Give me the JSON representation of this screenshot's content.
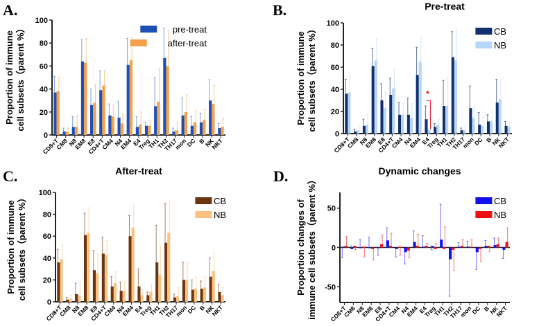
{
  "chart_data": [
    {
      "panel_label": "A.",
      "type": "bar",
      "title": "",
      "ylabel": [
        "Proportion of immune",
        "cell subsets（parent %）"
      ],
      "ylim": [
        0,
        100
      ],
      "yticks": [
        0,
        20,
        40,
        60,
        80,
        100
      ],
      "categories": [
        "CD8+T",
        "CM8",
        "N8",
        "EM8",
        "E8",
        "CD4+T",
        "CM4",
        "N4",
        "EM4",
        "E4",
        "Treg",
        "TH1",
        "TH2",
        "TH17",
        "mon",
        "DC",
        "B",
        "NK",
        "NKT"
      ],
      "legend": "top-right",
      "series": [
        {
          "name": "pre-treat",
          "color": "#1f4fb5",
          "errcolor": "#7ea3e0",
          "values": [
            37,
            3,
            7,
            64,
            26,
            39,
            17,
            15,
            61,
            7,
            8,
            25,
            67,
            3,
            17,
            8,
            11,
            30,
            6
          ],
          "err_end": [
            51,
            6,
            16,
            83,
            40,
            56,
            27,
            29,
            84,
            16,
            11,
            50,
            93,
            6,
            32,
            16,
            19,
            48,
            10
          ]
        },
        {
          "name": "after-treat",
          "color": "#f5a04a",
          "errcolor": "#f9c994",
          "values": [
            38,
            3,
            7,
            63,
            28,
            43,
            16,
            10,
            65,
            9,
            8,
            29,
            60,
            4,
            20,
            11,
            13,
            27,
            7
          ],
          "err_end": [
            50,
            6,
            17,
            84,
            44,
            56,
            26,
            18,
            85,
            20,
            13,
            58,
            91,
            11,
            35,
            21,
            22,
            43,
            14
          ]
        }
      ]
    },
    {
      "panel_label": "B.",
      "type": "bar",
      "title": "Pre-treat",
      "ylabel": [
        "Proportion of immune",
        "cell subsets（parent %）"
      ],
      "ylim": [
        0,
        100
      ],
      "yticks": [
        0,
        20,
        40,
        60,
        80,
        100
      ],
      "categories": [
        "CD8+T",
        "CM8",
        "N8",
        "EM8",
        "E8",
        "CD4+T",
        "CM4",
        "N4",
        "EM4",
        "E4",
        "Treg",
        "TH1",
        "TH2",
        "TH17",
        "mon",
        "DC",
        "B",
        "NK",
        "NKT"
      ],
      "legend": "top-right",
      "annotation": {
        "text": "*",
        "between": "E4 CB vs NB",
        "color": "#e02020"
      },
      "series": [
        {
          "name": "CB",
          "color": "#12306e",
          "errcolor": "#5a6f99",
          "values": [
            36,
            2,
            7,
            61,
            30,
            35,
            17,
            17,
            53,
            13,
            6,
            25,
            69,
            3,
            23,
            8,
            11,
            28,
            7
          ],
          "err_end": [
            49,
            4,
            13,
            77,
            45,
            50,
            28,
            32,
            78,
            25,
            9,
            48,
            92,
            5,
            43,
            19,
            17,
            49,
            11
          ]
        },
        {
          "name": "NB",
          "color": "#b6d7f7",
          "errcolor": "#d6e8fb",
          "values": [
            37,
            3,
            8,
            66,
            23,
            41,
            17,
            14,
            65,
            4,
            8,
            25,
            66,
            3,
            14,
            7,
            11,
            31,
            6
          ],
          "err_end": [
            53,
            8,
            17,
            86,
            37,
            59,
            27,
            27,
            87,
            4,
            13,
            51,
            94,
            7,
            25,
            15,
            20,
            49,
            10
          ]
        }
      ]
    },
    {
      "panel_label": "C.",
      "type": "bar",
      "title": "After-treat",
      "ylabel": [
        "Proportion of immune",
        "cell subsets（parent %）"
      ],
      "ylim": [
        0,
        100
      ],
      "yticks": [
        0,
        20,
        40,
        60,
        80,
        100
      ],
      "categories": [
        "CD8+T",
        "CM8",
        "N8",
        "EM8",
        "E8",
        "CD4+T",
        "CM4",
        "N4",
        "EM4",
        "E4",
        "Treg",
        "TH1",
        "TH2",
        "TH17",
        "mon",
        "DC",
        "B",
        "NK",
        "NKT"
      ],
      "legend": "top-right",
      "series": [
        {
          "name": "CB",
          "color": "#6b3510",
          "errcolor": "#a7806a",
          "values": [
            36,
            2,
            7,
            61,
            29,
            44,
            14,
            10,
            60,
            14,
            6,
            36,
            54,
            4,
            20,
            11,
            12,
            23,
            9
          ],
          "err_end": [
            48,
            4,
            17,
            81,
            47,
            59,
            23,
            18,
            79,
            30,
            9,
            70,
            90,
            7,
            36,
            20,
            19,
            40,
            16
          ]
        },
        {
          "name": "NB",
          "color": "#fbc17f",
          "errcolor": "#fcdcb4",
          "values": [
            39,
            3,
            6,
            63,
            26,
            43,
            17,
            10,
            68,
            6,
            9,
            25,
            63,
            5,
            20,
            12,
            13,
            28,
            6
          ],
          "err_end": [
            52,
            6,
            18,
            86,
            44,
            56,
            28,
            19,
            88,
            11,
            16,
            51,
            92,
            13,
            36,
            22,
            23,
            45,
            13
          ]
        }
      ]
    },
    {
      "panel_label": "D.",
      "type": "bar",
      "title": "Dynamic changes",
      "ylabel": [
        "Proportion changes of",
        "immune cell subsets（parent %）"
      ],
      "ylim": [
        -70,
        70
      ],
      "yticks": [
        -50,
        0,
        50
      ],
      "categories": [
        "CD8+T",
        "CM8",
        "N8",
        "EM8",
        "E8",
        "CD4+T",
        "CM4",
        "N4",
        "EM4",
        "E4",
        "Treg",
        "TH1",
        "TH2",
        "TH17",
        "mon",
        "DC",
        "B",
        "NK",
        "NKT"
      ],
      "legend": "top-right",
      "series": [
        {
          "name": "CB",
          "color": "#1010f0",
          "errcolor": "#7070f5",
          "values": [
            1,
            -2,
            -1,
            -1,
            -1,
            9,
            -2,
            -6,
            7,
            1,
            2,
            10,
            -15,
            1,
            1,
            -6,
            2,
            3,
            -3
          ],
          "err_end": [
            -13,
            2,
            10,
            13,
            -10,
            25,
            -12,
            -21,
            21,
            15,
            -3,
            55,
            -62,
            6,
            8,
            -28,
            9,
            12,
            -14
          ]
        },
        {
          "name": "NB",
          "color": "#f01010",
          "errcolor": "#f57070",
          "values": [
            2,
            2,
            1,
            -2,
            4,
            2,
            1,
            -4,
            2,
            2,
            -2,
            -2,
            -3,
            2,
            1,
            -2,
            2,
            4,
            7
          ],
          "err_end": [
            14,
            -3,
            -12,
            -16,
            16,
            18,
            -10,
            -13,
            17,
            5,
            5,
            26,
            -29,
            10,
            10,
            -18,
            -5,
            12,
            25
          ]
        }
      ]
    }
  ]
}
